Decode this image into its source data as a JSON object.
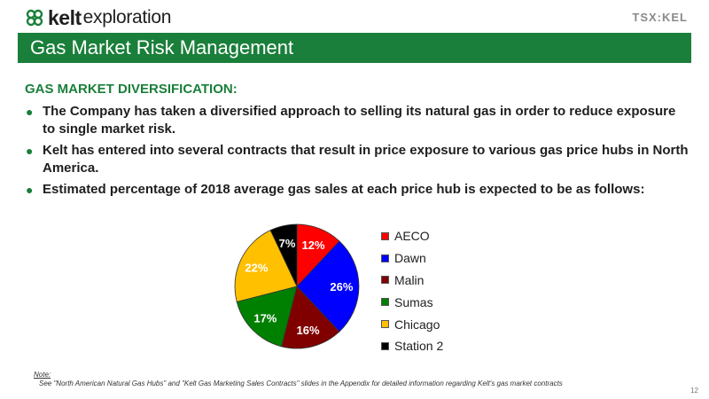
{
  "header": {
    "logo_bold": "kelt",
    "logo_light": "exploration",
    "ticker": "TSX:KEL",
    "title": "Gas Market Risk Management"
  },
  "content": {
    "section_title": "GAS MARKET DIVERSIFICATION:",
    "bullets": [
      "The Company has taken a diversified approach to selling its natural gas in order to reduce exposure to single market risk.",
      "Kelt has entered into several contracts that result in price exposure to various gas price hubs in North America.",
      "Estimated percentage of 2018 average gas sales at each price hub is expected to be as follows:"
    ]
  },
  "chart_data": {
    "type": "pie",
    "title": "",
    "legend_position": "right",
    "categories": [
      "AECO",
      "Dawn",
      "Malin",
      "Sumas",
      "Chicago",
      "Station 2"
    ],
    "values": [
      12,
      26,
      16,
      17,
      22,
      7
    ],
    "labels": [
      "12%",
      "26%",
      "16%",
      "17%",
      "22%",
      "7%"
    ],
    "colors": [
      "#ff0000",
      "#0000ff",
      "#800000",
      "#008000",
      "#ffc000",
      "#000000"
    ],
    "label_colors": [
      "#ffffff",
      "#ffffff",
      "#ffffff",
      "#ffffff",
      "#ffffff",
      "#ffffff"
    ]
  },
  "footer": {
    "note_label": "Note:",
    "note_text": "See \"North American Natural Gas Hubs\" and \"Kelt Gas Marketing Sales Contracts\" slides in the Appendix for detailed information regarding Kelt's gas market contracts",
    "page_number": "12"
  }
}
